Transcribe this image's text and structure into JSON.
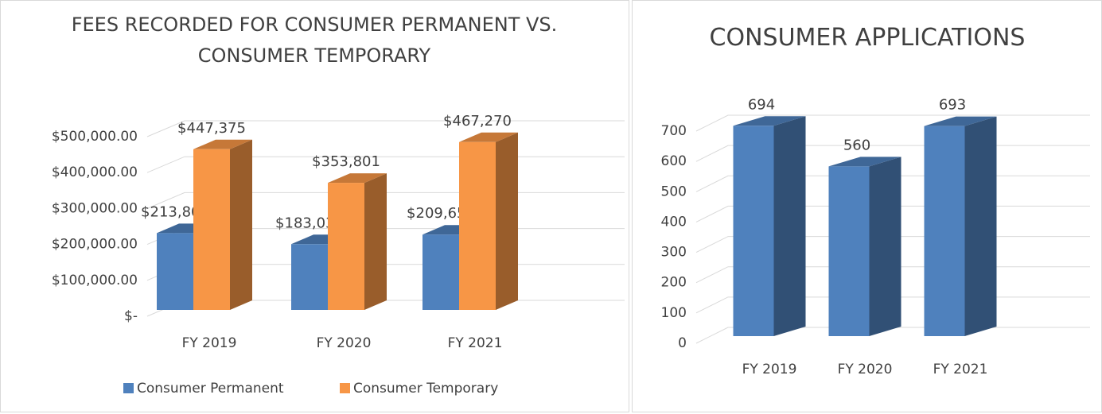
{
  "chart_data": [
    {
      "type": "bar3d",
      "title": "FEES RECORDED FOR CONSUMER PERMANENT VS. CONSUMER TEMPORARY",
      "categories": [
        "FY 2019",
        "FY 2020",
        "FY 2021"
      ],
      "series": [
        {
          "name": "Consumer Permanent",
          "color": "#4f81bd",
          "values": [
            213800,
            183030,
            209650
          ],
          "value_labels": [
            "$213,800",
            "$183,030",
            "$209,650"
          ]
        },
        {
          "name": "Consumer Temporary",
          "color": "#f79646",
          "values": [
            447375,
            353801,
            467270
          ],
          "value_labels": [
            "$447,375",
            "$353,801",
            "$467,270"
          ]
        }
      ],
      "ylim": [
        0,
        500000
      ],
      "yticks": [
        {
          "value": 0,
          "label": "$-"
        },
        {
          "value": 100000,
          "label": "$100,000.00"
        },
        {
          "value": 200000,
          "label": "$200,000.00"
        },
        {
          "value": 300000,
          "label": "$300,000.00"
        },
        {
          "value": 400000,
          "label": "$400,000.00"
        },
        {
          "value": 500000,
          "label": "$500,000.00"
        }
      ],
      "grid": true,
      "legend": "bottom"
    },
    {
      "type": "bar3d",
      "title": "CONSUMER APPLICATIONS",
      "categories": [
        "FY 2019",
        "FY 2020",
        "FY 2021"
      ],
      "series": [
        {
          "color": "#4f81bd",
          "values": [
            694,
            560,
            693
          ]
        }
      ],
      "ylim": [
        0,
        700
      ],
      "yticks": [
        0,
        100,
        200,
        300,
        400,
        500,
        600,
        700
      ],
      "grid": true
    }
  ]
}
